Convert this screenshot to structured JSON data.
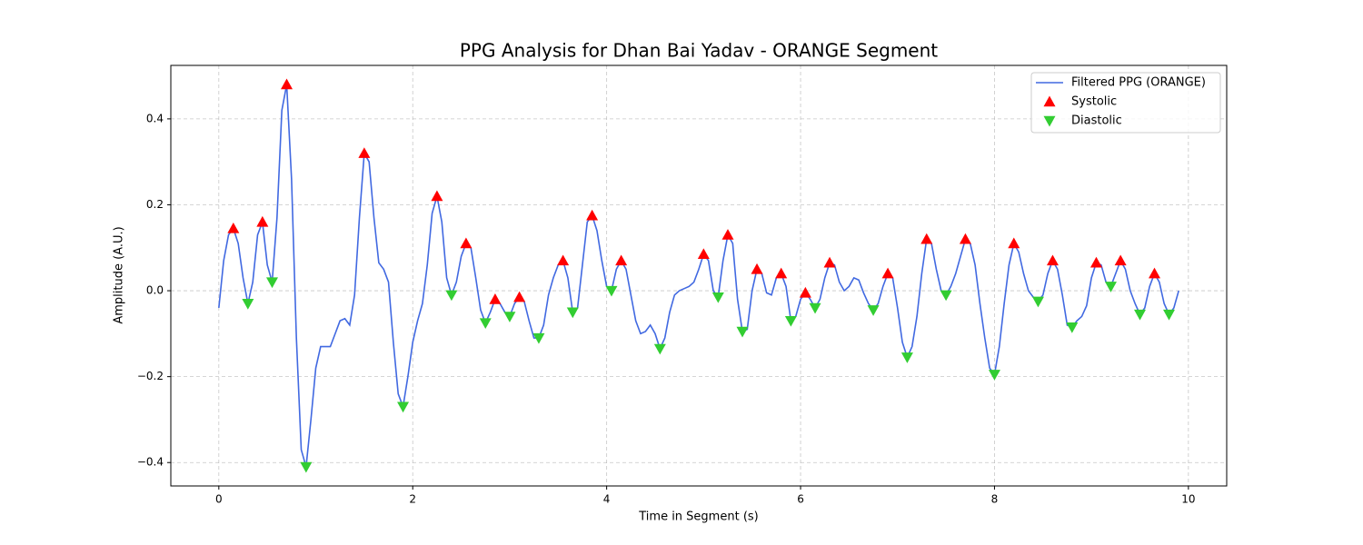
{
  "chart_data": {
    "type": "line",
    "title": "PPG Analysis for Dhan Bai Yadav - ORANGE Segment",
    "x_label": "Time in Segment (s)",
    "y_label": "Amplitude (A.U.)",
    "xlim": [
      -0.495,
      10.395
    ],
    "ylim": [
      -0.4545,
      0.5245
    ],
    "xticks": [
      0,
      2,
      4,
      6,
      8,
      10
    ],
    "yticks": [
      {
        "value": -0.4,
        "label": "−0.4"
      },
      {
        "value": -0.2,
        "label": "−0.2"
      },
      {
        "value": 0,
        "label": "0.0"
      },
      0.2,
      0.4
    ],
    "grid": true,
    "legend": "upper right",
    "series": [
      {
        "name": "Filtered PPG (ORANGE)",
        "type": "line",
        "color": "#4169e1",
        "x": [
          0,
          0.05,
          0.1,
          0.15,
          0.2,
          0.25,
          0.3,
          0.35,
          0.4,
          0.45,
          0.5,
          0.55,
          0.6,
          0.65,
          0.7,
          0.75,
          0.8,
          0.85,
          0.9,
          0.95,
          1,
          1.05,
          1.1,
          1.15,
          1.2,
          1.25,
          1.3,
          1.35,
          1.4,
          1.45,
          1.5,
          1.55,
          1.6,
          1.65,
          1.7,
          1.75,
          1.8,
          1.85,
          1.9,
          1.95,
          2,
          2.05,
          2.1,
          2.15,
          2.2,
          2.25,
          2.3,
          2.35,
          2.4,
          2.45,
          2.5,
          2.55,
          2.6,
          2.65,
          2.7,
          2.75,
          2.8,
          2.85,
          2.9,
          2.95,
          3,
          3.05,
          3.1,
          3.15,
          3.2,
          3.25,
          3.3,
          3.35,
          3.4,
          3.45,
          3.5,
          3.55,
          3.6,
          3.65,
          3.7,
          3.75,
          3.8,
          3.85,
          3.9,
          3.95,
          4,
          4.05,
          4.1,
          4.15,
          4.2,
          4.25,
          4.3,
          4.35,
          4.4,
          4.45,
          4.5,
          4.55,
          4.6,
          4.65,
          4.7,
          4.75,
          4.8,
          4.85,
          4.9,
          4.95,
          5,
          5.05,
          5.1,
          5.15,
          5.2,
          5.25,
          5.3,
          5.35,
          5.4,
          5.45,
          5.5,
          5.55,
          5.6,
          5.65,
          5.7,
          5.75,
          5.8,
          5.85,
          5.9,
          5.95,
          6,
          6.05,
          6.1,
          6.15,
          6.2,
          6.25,
          6.3,
          6.35,
          6.4,
          6.45,
          6.5,
          6.55,
          6.6,
          6.65,
          6.7,
          6.75,
          6.8,
          6.85,
          6.9,
          6.95,
          7,
          7.05,
          7.1,
          7.15,
          7.2,
          7.25,
          7.3,
          7.35,
          7.4,
          7.45,
          7.5,
          7.55,
          7.6,
          7.65,
          7.7,
          7.75,
          7.8,
          7.85,
          7.9,
          7.95,
          8,
          8.05,
          8.1,
          8.15,
          8.2,
          8.25,
          8.3,
          8.35,
          8.4,
          8.45,
          8.5,
          8.55,
          8.6,
          8.65,
          8.7,
          8.75,
          8.8,
          8.85,
          8.9,
          8.95,
          9,
          9.05,
          9.1,
          9.15,
          9.2,
          9.25,
          9.3,
          9.35,
          9.4,
          9.45,
          9.5,
          9.55,
          9.6,
          9.65,
          9.7,
          9.75,
          9.8,
          9.85,
          9.9
        ],
        "values": [
          -0.04,
          0.07,
          0.13,
          0.145,
          0.11,
          0.03,
          -0.03,
          0.02,
          0.13,
          0.16,
          0.06,
          0.02,
          0.17,
          0.42,
          0.48,
          0.26,
          -0.11,
          -0.37,
          -0.41,
          -0.3,
          -0.18,
          -0.13,
          -0.13,
          -0.13,
          -0.1,
          -0.07,
          -0.065,
          -0.08,
          -0.01,
          0.17,
          0.32,
          0.3,
          0.17,
          0.065,
          0.05,
          0.02,
          -0.12,
          -0.24,
          -0.27,
          -0.2,
          -0.12,
          -0.07,
          -0.03,
          0.06,
          0.18,
          0.22,
          0.16,
          0.03,
          -0.01,
          0.02,
          0.08,
          0.11,
          0.1,
          0.03,
          -0.045,
          -0.075,
          -0.05,
          -0.02,
          -0.03,
          -0.05,
          -0.06,
          -0.03,
          -0.015,
          -0.025,
          -0.07,
          -0.11,
          -0.11,
          -0.08,
          -0.01,
          0.03,
          0.06,
          0.07,
          0.03,
          -0.05,
          -0.04,
          0.06,
          0.16,
          0.175,
          0.14,
          0.07,
          0.01,
          0,
          0.05,
          0.07,
          0.05,
          -0.01,
          -0.07,
          -0.1,
          -0.095,
          -0.08,
          -0.1,
          -0.135,
          -0.11,
          -0.05,
          -0.01,
          0,
          0.005,
          0.01,
          0.02,
          0.05,
          0.085,
          0.07,
          0,
          -0.015,
          0.07,
          0.13,
          0.11,
          -0.02,
          -0.095,
          -0.09,
          0,
          0.05,
          0.04,
          -0.005,
          -0.01,
          0.03,
          0.04,
          0.01,
          -0.07,
          -0.06,
          -0.02,
          -0.005,
          -0.02,
          -0.04,
          -0.02,
          0.03,
          0.065,
          0.06,
          0.02,
          0,
          0.01,
          0.03,
          0.025,
          -0.005,
          -0.03,
          -0.045,
          -0.03,
          0.01,
          0.04,
          0.03,
          -0.04,
          -0.12,
          -0.155,
          -0.13,
          -0.06,
          0.04,
          0.12,
          0.11,
          0.05,
          0,
          -0.01,
          0.01,
          0.04,
          0.08,
          0.12,
          0.11,
          0.06,
          -0.03,
          -0.11,
          -0.18,
          -0.195,
          -0.13,
          -0.03,
          0.06,
          0.11,
          0.09,
          0.04,
          0,
          -0.015,
          -0.025,
          -0.01,
          0.04,
          0.07,
          0.05,
          -0.01,
          -0.08,
          -0.085,
          -0.07,
          -0.06,
          -0.035,
          0.03,
          0.065,
          0.06,
          0.02,
          0.01,
          0.04,
          0.07,
          0.05,
          0,
          -0.03,
          -0.055,
          -0.04,
          0.01,
          0.04,
          0.02,
          -0.03,
          -0.055,
          -0.04,
          0
        ]
      },
      {
        "name": "Systolic",
        "type": "scatter",
        "marker": "triangle-up",
        "color": "#ff0000",
        "x": [
          0.15,
          0.45,
          0.7,
          1.5,
          2.25,
          2.55,
          2.85,
          3.1,
          3.55,
          3.85,
          4.15,
          5.0,
          5.25,
          5.55,
          5.8,
          6.05,
          6.3,
          6.9,
          7.3,
          7.7,
          8.2,
          8.6,
          9.05,
          9.3,
          9.65
        ],
        "values": [
          0.145,
          0.16,
          0.48,
          0.32,
          0.22,
          0.11,
          -0.02,
          -0.015,
          0.07,
          0.175,
          0.07,
          0.085,
          0.13,
          0.05,
          0.04,
          -0.005,
          0.065,
          0.04,
          0.12,
          0.12,
          0.11,
          0.07,
          0.065,
          0.07,
          0.04
        ]
      },
      {
        "name": "Diastolic",
        "type": "scatter",
        "marker": "triangle-down",
        "color": "#32cd32",
        "x": [
          0.3,
          0.55,
          0.9,
          1.9,
          2.4,
          2.75,
          3.0,
          3.3,
          3.65,
          4.05,
          4.55,
          5.15,
          5.4,
          5.9,
          6.15,
          6.75,
          7.1,
          7.5,
          8.0,
          8.45,
          8.8,
          9.2,
          9.5,
          9.8
        ],
        "values": [
          -0.03,
          0.02,
          -0.41,
          -0.27,
          -0.01,
          -0.075,
          -0.06,
          -0.11,
          -0.05,
          0,
          -0.135,
          -0.015,
          -0.095,
          -0.07,
          -0.04,
          -0.045,
          -0.155,
          -0.01,
          -0.195,
          -0.025,
          -0.085,
          0.01,
          -0.055,
          -0.055
        ]
      }
    ]
  }
}
